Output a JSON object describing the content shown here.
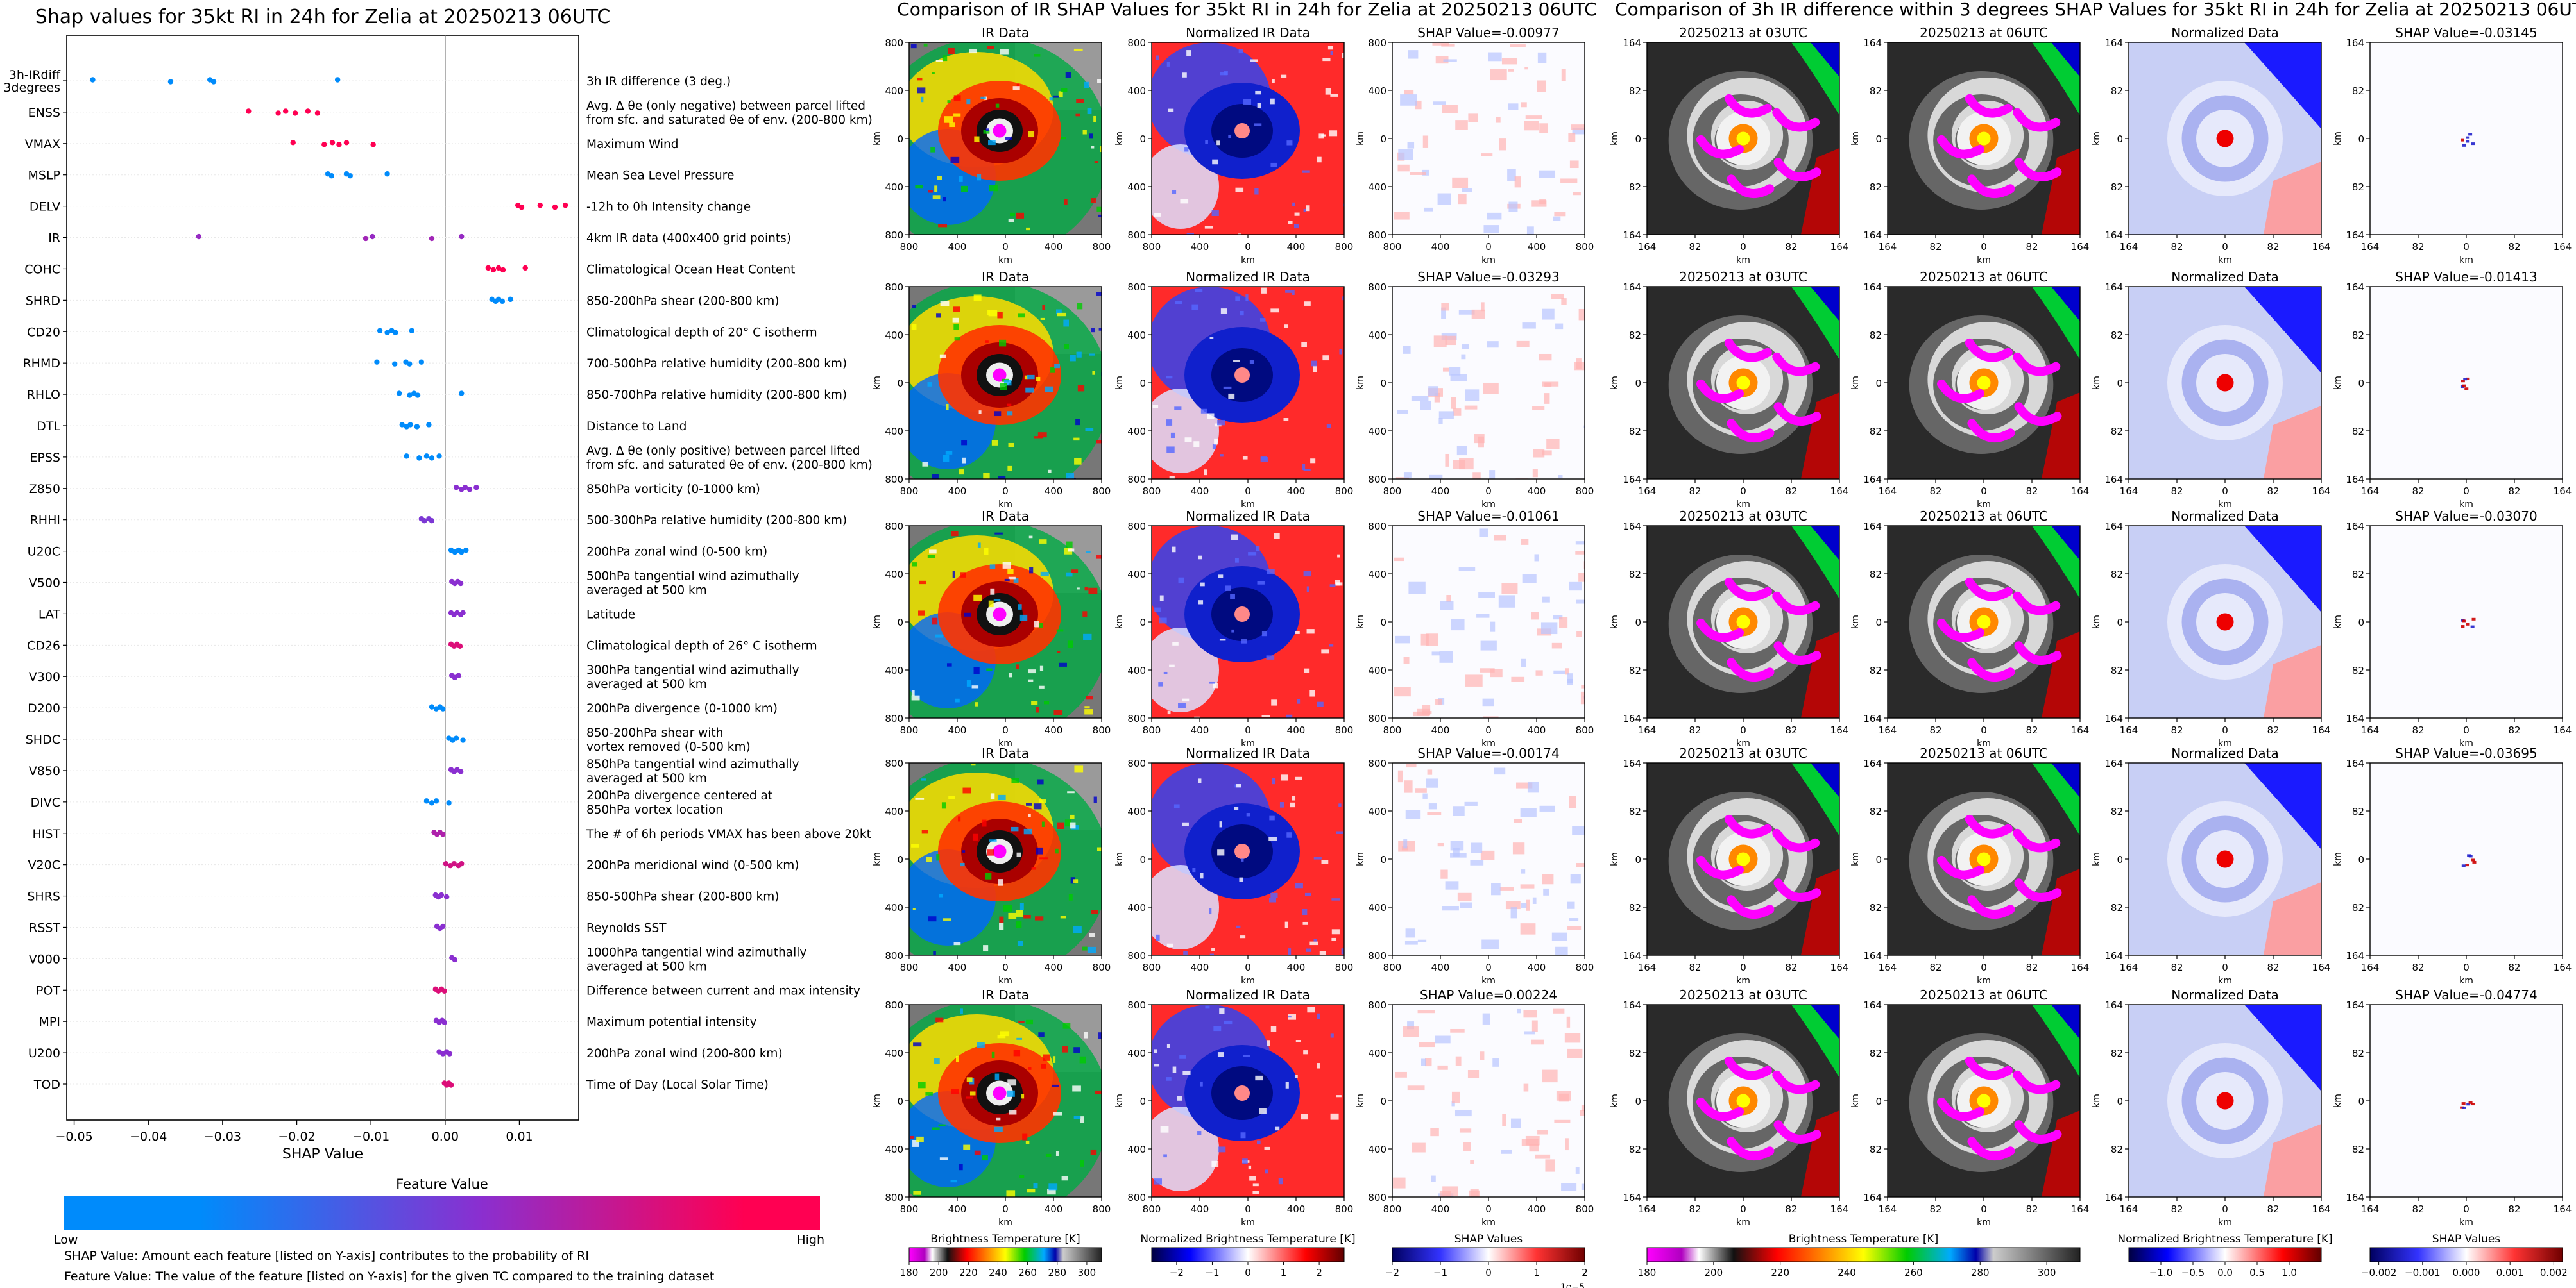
{
  "chart_data": [
    {
      "type": "scatter",
      "title": "Shap values for 35kt RI in 24h for Zelia at 20250213 06UTC",
      "xlabel": "SHAP Value",
      "xlim": [
        -0.051,
        0.018
      ],
      "xticks": [
        -0.05,
        -0.04,
        -0.03,
        -0.02,
        -0.01,
        0.0,
        0.01
      ],
      "xticklabels": [
        "−0.05",
        "−0.04",
        "−0.03",
        "−0.02",
        "−0.01",
        "0.00",
        "0.01"
      ],
      "grid": false,
      "colorbar": {
        "title": "Feature Value",
        "low_label": "Low",
        "high_label": "High",
        "colors": [
          "#008bfb",
          "#8a2fd0",
          "#ff0052"
        ]
      },
      "features": [
        {
          "name": "3h-IRdiff\n3degrees",
          "description": "3h IR difference (3 deg.)",
          "points": [
            -0.0475,
            -0.037,
            -0.0317,
            -0.0312,
            -0.0145
          ],
          "hues": [
            0,
            0,
            0,
            0,
            0
          ]
        },
        {
          "name": "ENSS",
          "description": "Avg. Δ θe (only negative) between parcel lifted\nfrom sfc. and saturated θe of env. (200-800 km)",
          "points": [
            -0.0265,
            -0.0225,
            -0.0215,
            -0.0202,
            -0.0185,
            -0.0172
          ],
          "hues": [
            1,
            1,
            1,
            1,
            1,
            1
          ]
        },
        {
          "name": "VMAX",
          "description": "Maximum Wind",
          "points": [
            -0.0205,
            -0.0163,
            -0.0152,
            -0.0143,
            -0.0133,
            -0.0097
          ],
          "hues": [
            1,
            1,
            1,
            1,
            1,
            1
          ]
        },
        {
          "name": "MSLP",
          "description": "Mean Sea Level Pressure",
          "points": [
            -0.0158,
            -0.0153,
            -0.0133,
            -0.0128,
            -0.0078
          ],
          "hues": [
            0,
            0,
            0,
            0,
            0
          ]
        },
        {
          "name": "DELV",
          "description": "-12h to 0h Intensity change",
          "points": [
            0.0098,
            0.0103,
            0.0128,
            0.0148,
            0.0162
          ],
          "hues": [
            1,
            1,
            1,
            1,
            1
          ]
        },
        {
          "name": "IR",
          "description": "4km IR data (400x400 grid points)",
          "points": [
            -0.0332,
            -0.0107,
            -0.0098,
            -0.0018,
            0.0022
          ],
          "hues": [
            0.55,
            0.6,
            0.55,
            0.6,
            0.55
          ]
        },
        {
          "name": "COHC",
          "description": "Climatological Ocean Heat Content",
          "points": [
            0.0058,
            0.0065,
            0.0072,
            0.0078,
            0.0108
          ],
          "hues": [
            1,
            1,
            1,
            1,
            1
          ]
        },
        {
          "name": "SHRD",
          "description": "850-200hPa shear (200-800 km)",
          "points": [
            0.0063,
            0.0068,
            0.0072,
            0.0077,
            0.0088
          ],
          "hues": [
            0,
            0,
            0,
            0,
            0
          ]
        },
        {
          "name": "CD20",
          "description": "Climatological depth of 20° C isotherm",
          "points": [
            -0.0088,
            -0.0078,
            -0.0072,
            -0.0067,
            -0.0045
          ],
          "hues": [
            0,
            0,
            0,
            0,
            0
          ]
        },
        {
          "name": "RHMD",
          "description": "700-500hPa relative humidity (200-800 km)",
          "points": [
            -0.0092,
            -0.0068,
            -0.0053,
            -0.0048,
            -0.0032
          ],
          "hues": [
            0,
            0,
            0,
            0,
            0
          ]
        },
        {
          "name": "RHLO",
          "description": "850-700hPa relative humidity (200-800 km)",
          "points": [
            -0.0062,
            -0.0048,
            -0.0042,
            -0.0037,
            0.0022
          ],
          "hues": [
            0,
            0,
            0,
            0,
            0
          ]
        },
        {
          "name": "DTL",
          "description": "Distance to Land",
          "points": [
            -0.0058,
            -0.0052,
            -0.0047,
            -0.0038,
            -0.0022
          ],
          "hues": [
            0,
            0,
            0,
            0,
            0
          ]
        },
        {
          "name": "EPSS",
          "description": "Avg. Δ θe (only positive) between parcel lifted\nfrom sfc. and saturated θe of env. (200-800 km)",
          "points": [
            -0.0052,
            -0.0035,
            -0.0025,
            -0.0018,
            -0.0008
          ],
          "hues": [
            0,
            0,
            0,
            0,
            0
          ]
        },
        {
          "name": "Z850",
          "description": "850hPa vorticity (0-1000 km)",
          "points": [
            0.0015,
            0.0022,
            0.0027,
            0.0033,
            0.0042
          ],
          "hues": [
            0.5,
            0.5,
            0.5,
            0.5,
            0.5
          ]
        },
        {
          "name": "RHHI",
          "description": "500-300hPa relative humidity (200-800 km)",
          "points": [
            -0.0032,
            -0.0028,
            -0.0022,
            -0.0018
          ],
          "hues": [
            0.45,
            0.45,
            0.45,
            0.45
          ]
        },
        {
          "name": "U20C",
          "description": "200hPa zonal wind (0-500 km)",
          "points": [
            0.0008,
            0.0013,
            0.0018,
            0.0022,
            0.0028
          ],
          "hues": [
            0,
            0,
            0,
            0,
            0
          ]
        },
        {
          "name": "V500",
          "description": "500hPa tangential wind azimuthally\naveraged at 500 km",
          "points": [
            0.0009,
            0.0013,
            0.0017,
            0.0021
          ],
          "hues": [
            0.5,
            0.5,
            0.5,
            0.5
          ]
        },
        {
          "name": "LAT",
          "description": "Latitude",
          "points": [
            0.0008,
            0.0012,
            0.0016,
            0.0021,
            0.0024
          ],
          "hues": [
            0.5,
            0.5,
            0.5,
            0.5,
            0.5
          ]
        },
        {
          "name": "CD26",
          "description": "Climatological depth of 26° C isotherm",
          "points": [
            0.0008,
            0.0012,
            0.0016,
            0.002
          ],
          "hues": [
            0.85,
            0.85,
            0.85,
            0.85
          ]
        },
        {
          "name": "V300",
          "description": "300hPa tangential wind azimuthally\naveraged at 500 km",
          "points": [
            0.0009,
            0.0013,
            0.0018
          ],
          "hues": [
            0.5,
            0.5,
            0.5
          ]
        },
        {
          "name": "D200",
          "description": "200hPa divergence (0-1000 km)",
          "points": [
            -0.0018,
            -0.0012,
            -0.0007,
            -0.0003
          ],
          "hues": [
            0,
            0,
            0,
            0
          ]
        },
        {
          "name": "SHDC",
          "description": "850-200hPa shear with\nvortex removed (0-500 km)",
          "points": [
            0.0005,
            0.001,
            0.0015,
            0.0024
          ],
          "hues": [
            0,
            0,
            0,
            0
          ]
        },
        {
          "name": "V850",
          "description": "850hPa tangential wind azimuthally\naveraged at 500 km",
          "points": [
            0.0008,
            0.0012,
            0.0016,
            0.0021
          ],
          "hues": [
            0.5,
            0.5,
            0.5,
            0.5
          ]
        },
        {
          "name": "DIVC",
          "description": "200hPa divergence centered at\n850hPa vortex location",
          "points": [
            -0.0025,
            -0.0018,
            -0.0012,
            0.0005
          ],
          "hues": [
            0,
            0,
            0,
            0
          ]
        },
        {
          "name": "HIST",
          "description": "The # of 6h periods VMAX has been above 20kt",
          "points": [
            -0.0015,
            -0.0011,
            -0.0007,
            -0.0003
          ],
          "hues": [
            0.65,
            0.65,
            0.65,
            0.65
          ]
        },
        {
          "name": "V20C",
          "description": "200hPa meridional wind (0-500 km)",
          "points": [
            0.0001,
            0.0007,
            0.0012,
            0.0018,
            0.0022
          ],
          "hues": [
            0.8,
            0.8,
            0.8,
            0.8,
            0.8
          ]
        },
        {
          "name": "SHRS",
          "description": "850-500hPa shear (200-800 km)",
          "points": [
            -0.0013,
            -0.0009,
            -0.0005,
            0.0002
          ],
          "hues": [
            0.5,
            0.5,
            0.5,
            0.5
          ]
        },
        {
          "name": "RSST",
          "description": "Reynolds SST",
          "points": [
            -0.0011,
            -0.0007,
            -0.0003
          ],
          "hues": [
            0.5,
            0.5,
            0.5
          ]
        },
        {
          "name": "V000",
          "description": "1000hPa tangential wind azimuthally\naveraged at 500 km",
          "points": [
            0.0009,
            0.0013
          ],
          "hues": [
            0.5,
            0.5
          ]
        },
        {
          "name": "POT",
          "description": "Difference between current and max intensity",
          "points": [
            -0.0013,
            -0.0009,
            -0.0005,
            -0.0001
          ],
          "hues": [
            0.85,
            0.85,
            0.85,
            0.85
          ]
        },
        {
          "name": "MPI",
          "description": "Maximum potential intensity",
          "points": [
            -0.0012,
            -0.0008,
            -0.0004,
            -0.0001
          ],
          "hues": [
            0.5,
            0.5,
            0.5,
            0.5
          ]
        },
        {
          "name": "U200",
          "description": "200hPa zonal wind (200-800 km)",
          "points": [
            -0.0008,
            -0.0003,
            0.0002,
            0.0006
          ],
          "hues": [
            0.5,
            0.5,
            0.5,
            0.5
          ]
        },
        {
          "name": "TOD",
          "description": "Time of Day (Local Solar Time)",
          "points": [
            -0.0001,
            0.0002,
            0.0005,
            0.0008
          ],
          "hues": [
            0.85,
            0.85,
            0.85,
            0.85
          ]
        }
      ]
    },
    {
      "type": "heatmap",
      "title": "Comparison of IR SHAP Values for 35kt RI in 24h for Zelia at 20250213 06UTC",
      "columns": [
        {
          "title": "IR Data",
          "xlabel": "km",
          "ylabel": "km",
          "ticks": [
            "800",
            "400",
            "0",
            "400",
            "800"
          ],
          "colormap": "ir"
        },
        {
          "title": "Normalized IR Data",
          "xlabel": "km",
          "ylabel": "km",
          "ticks": [
            "800",
            "400",
            "0",
            "400",
            "800"
          ],
          "colormap": "bwr"
        },
        {
          "title": "SHAP",
          "xlabel": "km",
          "ylabel": "km",
          "ticks": [
            "800",
            "400",
            "0",
            "400",
            "800"
          ],
          "colormap": "bwr-light"
        }
      ],
      "shap_row_titles": [
        "SHAP Value=-0.00977",
        "SHAP Value=-0.03293",
        "SHAP Value=-0.01061",
        "SHAP Value=-0.00174",
        "SHAP Value=0.00224"
      ],
      "colorbars": [
        {
          "label": "Brightness Temperature [K]",
          "ticks": [
            "180",
            "200",
            "220",
            "240",
            "260",
            "280",
            "300"
          ],
          "range": [
            180,
            310
          ]
        },
        {
          "label": "Normalized Brightness Temperature [K]",
          "ticks": [
            "−2",
            "−1",
            "0",
            "1",
            "2"
          ],
          "range": [
            -2.7,
            2.7
          ]
        },
        {
          "label": "SHAP Values",
          "ticks": [
            "−2",
            "−1",
            "0",
            "1",
            "2"
          ],
          "range": [
            -2,
            2
          ],
          "offset": "1e−5"
        }
      ]
    },
    {
      "type": "heatmap",
      "title": "Comparison of 3h IR difference within 3 degrees SHAP Values for 35kt RI in 24h for Zelia at 20250213 06UTC",
      "columns": [
        {
          "title": "20250213 at 03UTC",
          "xlabel": "km",
          "ylabel": "km",
          "ticks": [
            "164",
            "82",
            "0",
            "82",
            "164"
          ],
          "colormap": "ir"
        },
        {
          "title": "20250213 at 06UTC",
          "xlabel": "km",
          "ylabel": "km",
          "ticks": [
            "164",
            "82",
            "0",
            "82",
            "164"
          ],
          "colormap": "ir"
        },
        {
          "title": "Normalized Data",
          "xlabel": "km",
          "ylabel": "km",
          "ticks": [
            "164",
            "82",
            "0",
            "82",
            "164"
          ],
          "colormap": "bwr"
        },
        {
          "title": "SHAP",
          "xlabel": "km",
          "ylabel": "km",
          "ticks": [
            "164",
            "82",
            "0",
            "82",
            "164"
          ],
          "colormap": "bwr-light"
        }
      ],
      "shap_row_titles": [
        "SHAP Value=-0.03145",
        "SHAP Value=-0.01413",
        "SHAP Value=-0.03070",
        "SHAP Value=-0.03695",
        "SHAP Value=-0.04774"
      ],
      "colorbars": [
        {
          "label": "Brightness Temperature [K]",
          "ticks": [
            "180",
            "200",
            "220",
            "240",
            "260",
            "280",
            "300"
          ],
          "range": [
            180,
            310
          ]
        },
        {
          "label": "Normalized Brightness Temperature [K]",
          "ticks": [
            "−1.0",
            "−0.5",
            "0.0",
            "0.5",
            "1.0"
          ],
          "range": [
            -1.5,
            1.5
          ]
        },
        {
          "label": "SHAP Values",
          "ticks": [
            "−0.002",
            "−0.001",
            "0.000",
            "0.001",
            "0.002"
          ],
          "range": [
            -0.0022,
            0.0022
          ]
        }
      ]
    }
  ],
  "notes": {
    "shap_definition": "SHAP Value: Amount each feature [listed on Y-axis] contributes to the probability of RI",
    "feature_value_definition": "Feature Value: The value of the feature [listed on Y-axis] for the given TC compared to the training dataset"
  }
}
